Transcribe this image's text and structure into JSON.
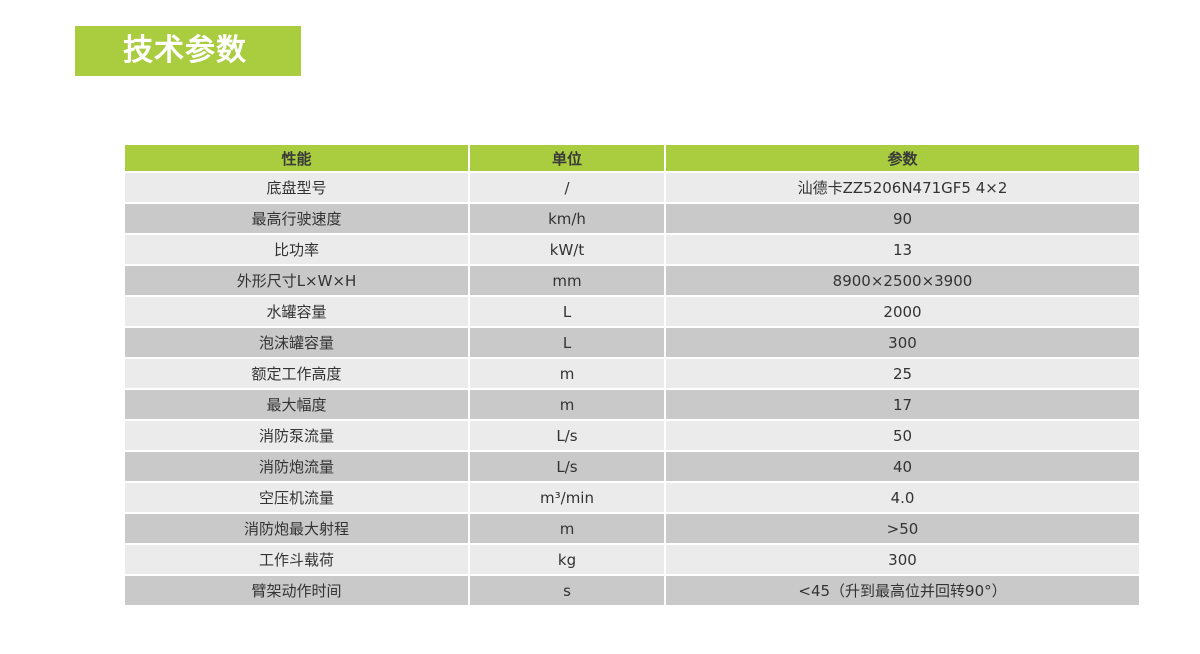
{
  "title": "技术参数",
  "colors": {
    "accent": "#a9cd3f",
    "row_light": "#ebebeb",
    "row_dark": "#c9c9c9"
  },
  "table": {
    "headers": [
      "性能",
      "单位",
      "参数"
    ],
    "rows": [
      [
        "底盘型号",
        "/",
        "汕德卡ZZ5206N471GF5 4×2"
      ],
      [
        "最高行驶速度",
        "km/h",
        "90"
      ],
      [
        "比功率",
        "kW/t",
        "13"
      ],
      [
        "外形尺寸L×W×H",
        "mm",
        "8900×2500×3900"
      ],
      [
        "水罐容量",
        "L",
        "2000"
      ],
      [
        "泡沫罐容量",
        "L",
        "300"
      ],
      [
        "额定工作高度",
        "m",
        "25"
      ],
      [
        "最大幅度",
        "m",
        "17"
      ],
      [
        "消防泵流量",
        "L/s",
        "50"
      ],
      [
        "消防炮流量",
        "L/s",
        "40"
      ],
      [
        "空压机流量",
        "m³/min",
        "4.0"
      ],
      [
        "消防炮最大射程",
        "m",
        ">50"
      ],
      [
        "工作斗载荷",
        "kg",
        "300"
      ],
      [
        "臂架动作时间",
        "s",
        "<45（升到最高位并回转90°）"
      ]
    ]
  }
}
